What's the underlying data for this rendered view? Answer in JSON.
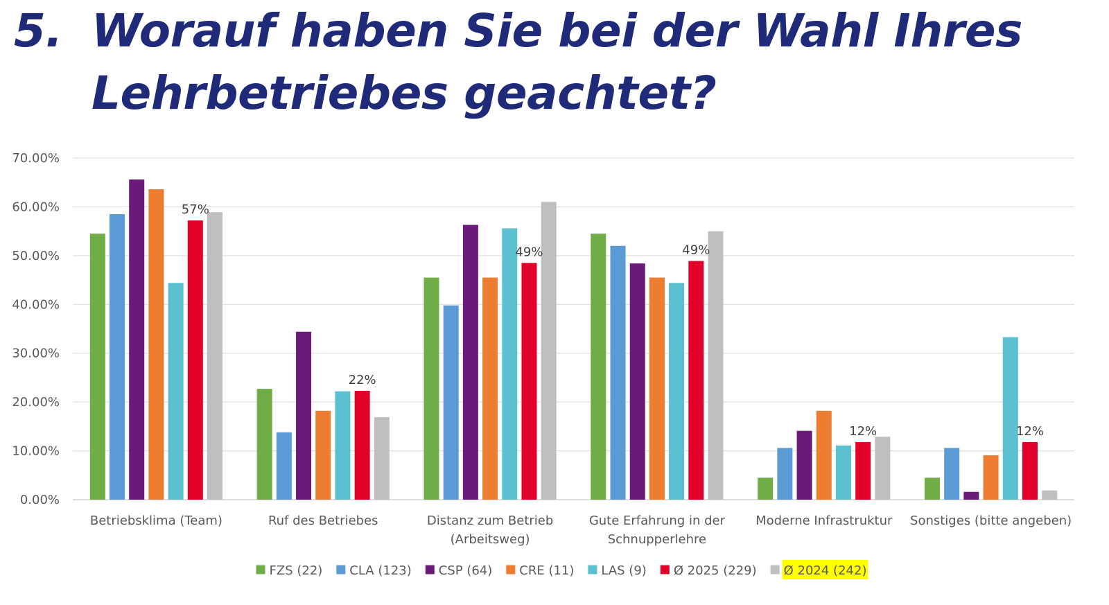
{
  "title": {
    "number": "5.",
    "line1": "Worauf haben Sie bei der Wahl Ihres",
    "line2": "Lehrbetriebes geachtet?"
  },
  "chart_data": {
    "type": "bar",
    "ylim": [
      0,
      70
    ],
    "yticks": [
      "0.00%",
      "10.00%",
      "20.00%",
      "30.00%",
      "40.00%",
      "50.00%",
      "60.00%",
      "70.00%"
    ],
    "grid": true,
    "legend_position": "bottom",
    "categories": [
      [
        "Betriebsklima (Team)"
      ],
      [
        "Ruf des Betriebes"
      ],
      [
        "Distanz zum Betrieb",
        "(Arbeitsweg)"
      ],
      [
        "Gute Erfahrung in der",
        "Schnupperlehre"
      ],
      [
        "Moderne Infrastruktur"
      ],
      [
        "Sonstiges (bitte angeben)"
      ]
    ],
    "series": [
      {
        "name": "FZS (22)",
        "color": "#70ad47",
        "values": [
          54.5,
          22.7,
          45.5,
          54.5,
          4.5,
          4.5
        ]
      },
      {
        "name": "CLA (123)",
        "color": "#5b9bd5",
        "values": [
          58.5,
          13.8,
          39.8,
          52.0,
          10.6,
          10.6
        ]
      },
      {
        "name": "CSP (64)",
        "color": "#6a1b7a",
        "values": [
          65.6,
          34.4,
          56.3,
          48.4,
          14.1,
          1.6
        ]
      },
      {
        "name": "CRE (11)",
        "color": "#ed7d31",
        "values": [
          63.6,
          18.2,
          45.5,
          45.5,
          18.2,
          9.1
        ]
      },
      {
        "name": "LAS (9)",
        "color": "#5bc0cf",
        "values": [
          44.4,
          22.2,
          55.6,
          44.4,
          11.1,
          33.3
        ]
      },
      {
        "name": "Ø 2025 (229)",
        "color": "#e0002a",
        "values": [
          57.2,
          22.3,
          48.5,
          48.9,
          11.8,
          11.8
        ]
      },
      {
        "name": "Ø 2024 (242)",
        "color": "#bfbfbf",
        "values": [
          58.9,
          16.9,
          61.0,
          55.0,
          12.9,
          1.9
        ],
        "highlight": "#ffff00"
      }
    ],
    "data_labels": {
      "series": "Ø 2025 (229)",
      "values": [
        "57%",
        "22%",
        "49%",
        "49%",
        "12%",
        "12%"
      ]
    }
  }
}
